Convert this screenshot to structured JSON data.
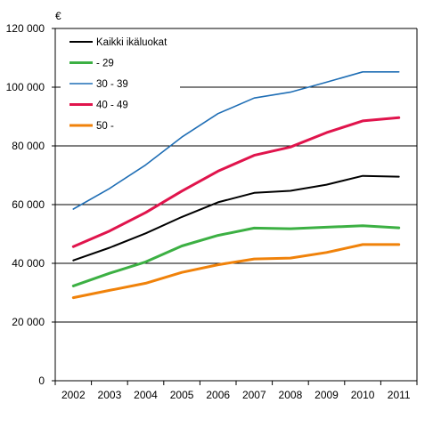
{
  "chart_data": {
    "type": "line",
    "unit_label": "€",
    "x": [
      "2002",
      "2003",
      "2004",
      "2005",
      "2006",
      "2007",
      "2008",
      "2009",
      "2010",
      "2011"
    ],
    "ylim": [
      0,
      120000
    ],
    "yticks": [
      0,
      20000,
      40000,
      60000,
      80000,
      100000,
      120000
    ],
    "ytick_labels": [
      "0",
      "20 000",
      "40 000",
      "60 000",
      "80 000",
      "100 000",
      "120 000"
    ],
    "grid": "horizontal",
    "legend_position": "top-left",
    "series": [
      {
        "name": "Kaikki ikäluokat",
        "color": "#000000",
        "values": [
          41000,
          45300,
          50200,
          55800,
          60800,
          64000,
          64700,
          66800,
          69800,
          69500
        ]
      },
      {
        "name": "- 29",
        "color": "#3cb043",
        "values": [
          32300,
          36600,
          40500,
          45900,
          49500,
          52000,
          51800,
          52300,
          52800,
          52100
        ]
      },
      {
        "name": "30 - 39",
        "color": "#1f6eb5",
        "values": [
          58500,
          65500,
          73500,
          83000,
          91000,
          96300,
          98300,
          101700,
          105200,
          105200
        ]
      },
      {
        "name": "40 - 49",
        "color": "#e0144c",
        "values": [
          45700,
          51000,
          57300,
          64600,
          71400,
          76800,
          79600,
          84500,
          88500,
          89600
        ]
      },
      {
        "name": "50 -",
        "color": "#f0820a",
        "values": [
          28300,
          30800,
          33200,
          36900,
          39500,
          41500,
          41800,
          43700,
          46400,
          46400
        ]
      }
    ]
  }
}
